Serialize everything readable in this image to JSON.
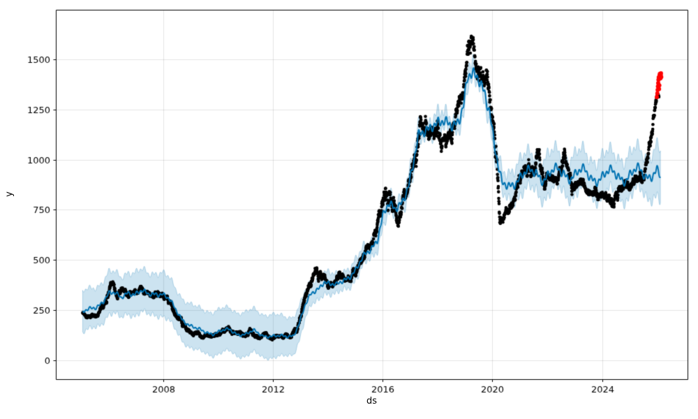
{
  "chart_data": {
    "type": "line",
    "subtype": "time-series forecast with observations scatter, uncertainty band and anomaly points (Prophet-style)",
    "title": "",
    "xlabel": "ds",
    "ylabel": "y",
    "x_ticks": [
      2008,
      2012,
      2016,
      2020,
      2024
    ],
    "y_ticks": [
      0,
      250,
      500,
      750,
      1000,
      1250,
      1500
    ],
    "x_range": [
      2004.07,
      2027.12
    ],
    "y_range": [
      -94,
      1747
    ],
    "grid": true,
    "legend": false,
    "colors": {
      "observations": "#000000",
      "forecast_line": "#0072B2",
      "uncertainty_band": "rgba(0,114,178,0.2)",
      "uncertainty_edge": "rgba(0,114,178,0.25)",
      "anomalies": "#ff0000",
      "grid": "rgba(0,0,0,0.10)",
      "spine": "#000000",
      "tick_text": "#000000"
    },
    "seasonality": {
      "base_amplitude": 7,
      "relative_amplitude": 0.032
    },
    "series": {
      "forecast_trend": [
        [
          2005.05,
          240
        ],
        [
          2005.3,
          250
        ],
        [
          2005.55,
          265
        ],
        [
          2005.8,
          300
        ],
        [
          2006.0,
          335
        ],
        [
          2006.2,
          330
        ],
        [
          2006.45,
          310
        ],
        [
          2006.7,
          345
        ],
        [
          2006.95,
          330
        ],
        [
          2007.2,
          340
        ],
        [
          2007.45,
          328
        ],
        [
          2007.7,
          338
        ],
        [
          2007.95,
          332
        ],
        [
          2008.2,
          300
        ],
        [
          2008.45,
          250
        ],
        [
          2008.7,
          205
        ],
        [
          2008.95,
          175
        ],
        [
          2009.2,
          155
        ],
        [
          2009.5,
          142
        ],
        [
          2009.8,
          135
        ],
        [
          2010.1,
          145
        ],
        [
          2010.4,
          152
        ],
        [
          2010.7,
          132
        ],
        [
          2011.0,
          130
        ],
        [
          2011.3,
          145
        ],
        [
          2011.6,
          125
        ],
        [
          2011.9,
          122
        ],
        [
          2012.2,
          118
        ],
        [
          2012.5,
          118
        ],
        [
          2012.75,
          128
        ],
        [
          2012.95,
          185
        ],
        [
          2013.15,
          265
        ],
        [
          2013.4,
          330
        ],
        [
          2013.65,
          362
        ],
        [
          2013.85,
          398
        ],
        [
          2014.05,
          378
        ],
        [
          2014.3,
          368
        ],
        [
          2014.55,
          400
        ],
        [
          2014.8,
          425
        ],
        [
          2015.05,
          455
        ],
        [
          2015.3,
          510
        ],
        [
          2015.55,
          555
        ],
        [
          2015.8,
          610
        ],
        [
          2016.0,
          720
        ],
        [
          2016.2,
          765
        ],
        [
          2016.45,
          750
        ],
        [
          2016.7,
          800
        ],
        [
          2016.95,
          880
        ],
        [
          2017.1,
          960
        ],
        [
          2017.3,
          1100
        ],
        [
          2017.55,
          1150
        ],
        [
          2017.8,
          1190
        ],
        [
          2018.05,
          1180
        ],
        [
          2018.3,
          1165
        ],
        [
          2018.55,
          1175
        ],
        [
          2018.75,
          1210
        ],
        [
          2018.95,
          1280
        ],
        [
          2019.1,
          1405
        ],
        [
          2019.3,
          1400
        ],
        [
          2019.5,
          1405
        ],
        [
          2019.7,
          1360
        ],
        [
          2019.9,
          1255
        ],
        [
          2020.05,
          1085
        ],
        [
          2020.2,
          960
        ],
        [
          2020.35,
          870
        ],
        [
          2020.6,
          880
        ],
        [
          2020.85,
          895
        ],
        [
          2021.1,
          915
        ],
        [
          2021.35,
          935
        ],
        [
          2021.6,
          945
        ],
        [
          2021.85,
          905
        ],
        [
          2022.1,
          925
        ],
        [
          2022.35,
          945
        ],
        [
          2022.6,
          940
        ],
        [
          2022.85,
          915
        ],
        [
          2023.1,
          930
        ],
        [
          2023.35,
          940
        ],
        [
          2023.6,
          915
        ],
        [
          2023.85,
          905
        ],
        [
          2024.1,
          920
        ],
        [
          2024.35,
          935
        ],
        [
          2024.6,
          925
        ],
        [
          2024.85,
          905
        ],
        [
          2025.1,
          930
        ],
        [
          2025.35,
          945
        ],
        [
          2025.6,
          920
        ],
        [
          2025.85,
          935
        ],
        [
          2026.0,
          950
        ],
        [
          2026.13,
          910
        ]
      ],
      "uncertainty_halfwidth": [
        [
          2005.05,
          100
        ],
        [
          2006.0,
          102
        ],
        [
          2007.0,
          104
        ],
        [
          2008.0,
          105
        ],
        [
          2009.0,
          106
        ],
        [
          2010.0,
          108
        ],
        [
          2011.0,
          108
        ],
        [
          2012.0,
          106
        ],
        [
          2012.8,
          92
        ],
        [
          2013.3,
          62
        ],
        [
          2013.8,
          52
        ],
        [
          2014.5,
          48
        ],
        [
          2015.2,
          46
        ],
        [
          2016.0,
          50
        ],
        [
          2017.0,
          46
        ],
        [
          2018.0,
          40
        ],
        [
          2019.0,
          40
        ],
        [
          2019.8,
          44
        ],
        [
          2020.3,
          58
        ],
        [
          2020.7,
          75
        ],
        [
          2021.2,
          88
        ],
        [
          2022.0,
          95
        ],
        [
          2023.0,
          95
        ],
        [
          2024.0,
          96
        ],
        [
          2025.0,
          100
        ],
        [
          2025.7,
          105
        ],
        [
          2026.13,
          120
        ]
      ],
      "observations_trajectory": [
        [
          2005.05,
          235,
          15
        ],
        [
          2005.3,
          218,
          18
        ],
        [
          2005.55,
          225,
          20
        ],
        [
          2005.8,
          265,
          30
        ],
        [
          2006.0,
          360,
          45
        ],
        [
          2006.15,
          380,
          35
        ],
        [
          2006.3,
          330,
          30
        ],
        [
          2006.5,
          352,
          25
        ],
        [
          2006.7,
          330,
          25
        ],
        [
          2006.95,
          328,
          25
        ],
        [
          2007.2,
          342,
          25
        ],
        [
          2007.45,
          328,
          22
        ],
        [
          2007.7,
          340,
          22
        ],
        [
          2007.95,
          330,
          28
        ],
        [
          2008.15,
          305,
          32
        ],
        [
          2008.35,
          240,
          35
        ],
        [
          2008.6,
          190,
          28
        ],
        [
          2008.85,
          158,
          25
        ],
        [
          2009.1,
          135,
          20
        ],
        [
          2009.4,
          128,
          18
        ],
        [
          2009.7,
          118,
          15
        ],
        [
          2010.0,
          132,
          22
        ],
        [
          2010.3,
          168,
          22
        ],
        [
          2010.6,
          130,
          20
        ],
        [
          2010.9,
          128,
          20
        ],
        [
          2011.15,
          152,
          25
        ],
        [
          2011.45,
          118,
          15
        ],
        [
          2011.75,
          125,
          15
        ],
        [
          2012.05,
          112,
          14
        ],
        [
          2012.35,
          120,
          14
        ],
        [
          2012.6,
          122,
          14
        ],
        [
          2012.85,
          160,
          30
        ],
        [
          2013.05,
          255,
          45
        ],
        [
          2013.3,
          360,
          45
        ],
        [
          2013.55,
          450,
          45
        ],
        [
          2013.75,
          430,
          40
        ],
        [
          2013.95,
          380,
          45
        ],
        [
          2014.2,
          360,
          40
        ],
        [
          2014.45,
          415,
          40
        ],
        [
          2014.7,
          385,
          40
        ],
        [
          2014.95,
          440,
          40
        ],
        [
          2015.2,
          505,
          45
        ],
        [
          2015.45,
          560,
          45
        ],
        [
          2015.7,
          625,
          55
        ],
        [
          2015.9,
          730,
          70
        ],
        [
          2016.1,
          840,
          95
        ],
        [
          2016.3,
          810,
          100
        ],
        [
          2016.5,
          720,
          75
        ],
        [
          2016.7,
          780,
          70
        ],
        [
          2016.9,
          855,
          60
        ],
        [
          2017.1,
          940,
          85
        ],
        [
          2017.35,
          1170,
          110
        ],
        [
          2017.55,
          1180,
          100
        ],
        [
          2017.75,
          1155,
          90
        ],
        [
          2018.0,
          1130,
          85
        ],
        [
          2018.25,
          1090,
          75
        ],
        [
          2018.5,
          1090,
          75
        ],
        [
          2018.7,
          1220,
          80
        ],
        [
          2018.9,
          1290,
          85
        ],
        [
          2019.1,
          1520,
          115
        ],
        [
          2019.25,
          1555,
          95
        ],
        [
          2019.45,
          1450,
          90
        ],
        [
          2019.65,
          1390,
          85
        ],
        [
          2019.85,
          1335,
          85
        ],
        [
          2020.0,
          1230,
          85
        ],
        [
          2020.13,
          1050,
          140
        ],
        [
          2020.28,
          730,
          55
        ],
        [
          2020.5,
          735,
          50
        ],
        [
          2020.75,
          805,
          50
        ],
        [
          2021.0,
          875,
          55
        ],
        [
          2021.25,
          915,
          65
        ],
        [
          2021.45,
          950,
          80
        ],
        [
          2021.68,
          1050,
          75
        ],
        [
          2021.9,
          880,
          55
        ],
        [
          2022.15,
          875,
          50
        ],
        [
          2022.4,
          905,
          55
        ],
        [
          2022.65,
          1015,
          75
        ],
        [
          2022.9,
          875,
          50
        ],
        [
          2023.15,
          880,
          50
        ],
        [
          2023.4,
          855,
          50
        ],
        [
          2023.65,
          865,
          50
        ],
        [
          2023.9,
          845,
          50
        ],
        [
          2024.15,
          820,
          50
        ],
        [
          2024.4,
          795,
          48
        ],
        [
          2024.65,
          855,
          50
        ],
        [
          2024.9,
          875,
          50
        ],
        [
          2025.15,
          885,
          50
        ],
        [
          2025.4,
          905,
          50
        ],
        [
          2025.6,
          960,
          55
        ],
        [
          2025.75,
          1090,
          70
        ],
        [
          2025.9,
          1240,
          55
        ],
        [
          2026.0,
          1310,
          30
        ],
        [
          2026.08,
          1330,
          20
        ]
      ],
      "anomalies": [
        [
          2026.0,
          1312
        ],
        [
          2026.02,
          1330
        ],
        [
          2026.03,
          1348
        ],
        [
          2026.04,
          1365
        ],
        [
          2026.05,
          1382
        ],
        [
          2026.06,
          1398
        ],
        [
          2026.07,
          1410
        ],
        [
          2026.08,
          1352
        ],
        [
          2026.09,
          1370
        ],
        [
          2026.1,
          1420
        ],
        [
          2026.11,
          1428
        ],
        [
          2026.12,
          1415
        ],
        [
          2026.13,
          1405
        ],
        [
          2026.14,
          1422
        ],
        [
          2026.15,
          1430
        ],
        [
          2026.16,
          1412
        ]
      ]
    }
  }
}
